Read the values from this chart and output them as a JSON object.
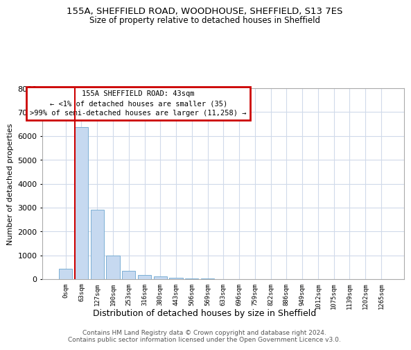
{
  "title_line1": "155A, SHEFFIELD ROAD, WOODHOUSE, SHEFFIELD, S13 7ES",
  "title_line2": "Size of property relative to detached houses in Sheffield",
  "xlabel": "Distribution of detached houses by size in Sheffield",
  "ylabel": "Number of detached properties",
  "bar_labels": [
    "0sqm",
    "63sqm",
    "127sqm",
    "190sqm",
    "253sqm",
    "316sqm",
    "380sqm",
    "443sqm",
    "506sqm",
    "569sqm",
    "633sqm",
    "696sqm",
    "759sqm",
    "822sqm",
    "886sqm",
    "949sqm",
    "1012sqm",
    "1075sqm",
    "1139sqm",
    "1202sqm",
    "1265sqm"
  ],
  "bar_values": [
    450,
    6380,
    2920,
    980,
    340,
    175,
    110,
    70,
    35,
    18,
    10,
    7,
    5,
    3,
    2,
    2,
    1,
    1,
    1,
    0,
    0
  ],
  "bar_color": "#c6d9f0",
  "bar_edge_color": "#7bafd4",
  "grid_color": "#d0daea",
  "annotation_box_text": "155A SHEFFIELD ROAD: 43sqm\n← <1% of detached houses are smaller (35)\n>99% of semi-detached houses are larger (11,258) →",
  "annotation_box_color": "#cc0000",
  "property_line_color": "#cc0000",
  "footer_text": "Contains HM Land Registry data © Crown copyright and database right 2024.\nContains public sector information licensed under the Open Government Licence v3.0.",
  "ylim": [
    0,
    8000
  ],
  "yticks": [
    0,
    1000,
    2000,
    3000,
    4000,
    5000,
    6000,
    7000,
    8000
  ],
  "background_color": "#ffffff",
  "fig_width": 6.0,
  "fig_height": 5.0,
  "property_line_xindex": 1.0
}
